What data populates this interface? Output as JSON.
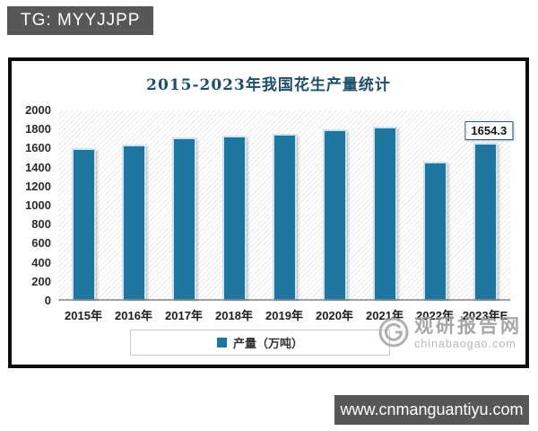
{
  "page": {
    "badge_text": "TG: MYYJJPP",
    "banner_text": "www.cnmanguantiyu.com"
  },
  "watermark": {
    "brand": "观研报告网",
    "domain": "chinabaogao.com"
  },
  "chart_data": {
    "type": "bar",
    "title": "2015-2023年我国花生产量统计",
    "series_name": "产量（万吨）",
    "categories": [
      "2015年",
      "2016年",
      "2017年",
      "2018年",
      "2019年",
      "2020年",
      "2021年",
      "2022年",
      "2023年E"
    ],
    "values": [
      1600,
      1640,
      1710,
      1730,
      1755,
      1800,
      1830,
      1460,
      1654.3
    ],
    "xlabel": "",
    "ylabel": "",
    "ylim": [
      0,
      2000
    ],
    "ytick_step": 200,
    "yticks": [
      2000,
      1800,
      1600,
      1400,
      1200,
      1000,
      800,
      600,
      400,
      200,
      0
    ],
    "grid": false,
    "legend_position": "bottom",
    "annotated_point": {
      "category": "2023年E",
      "value": 1654.3,
      "label": "1654.3"
    },
    "colors": {
      "bar": "#1f759f",
      "bar_edge": "#cde4ee",
      "title": "#1d4f66",
      "plot_hatch": "#e9e9e9",
      "axis_line": "#9ba1a5"
    }
  }
}
